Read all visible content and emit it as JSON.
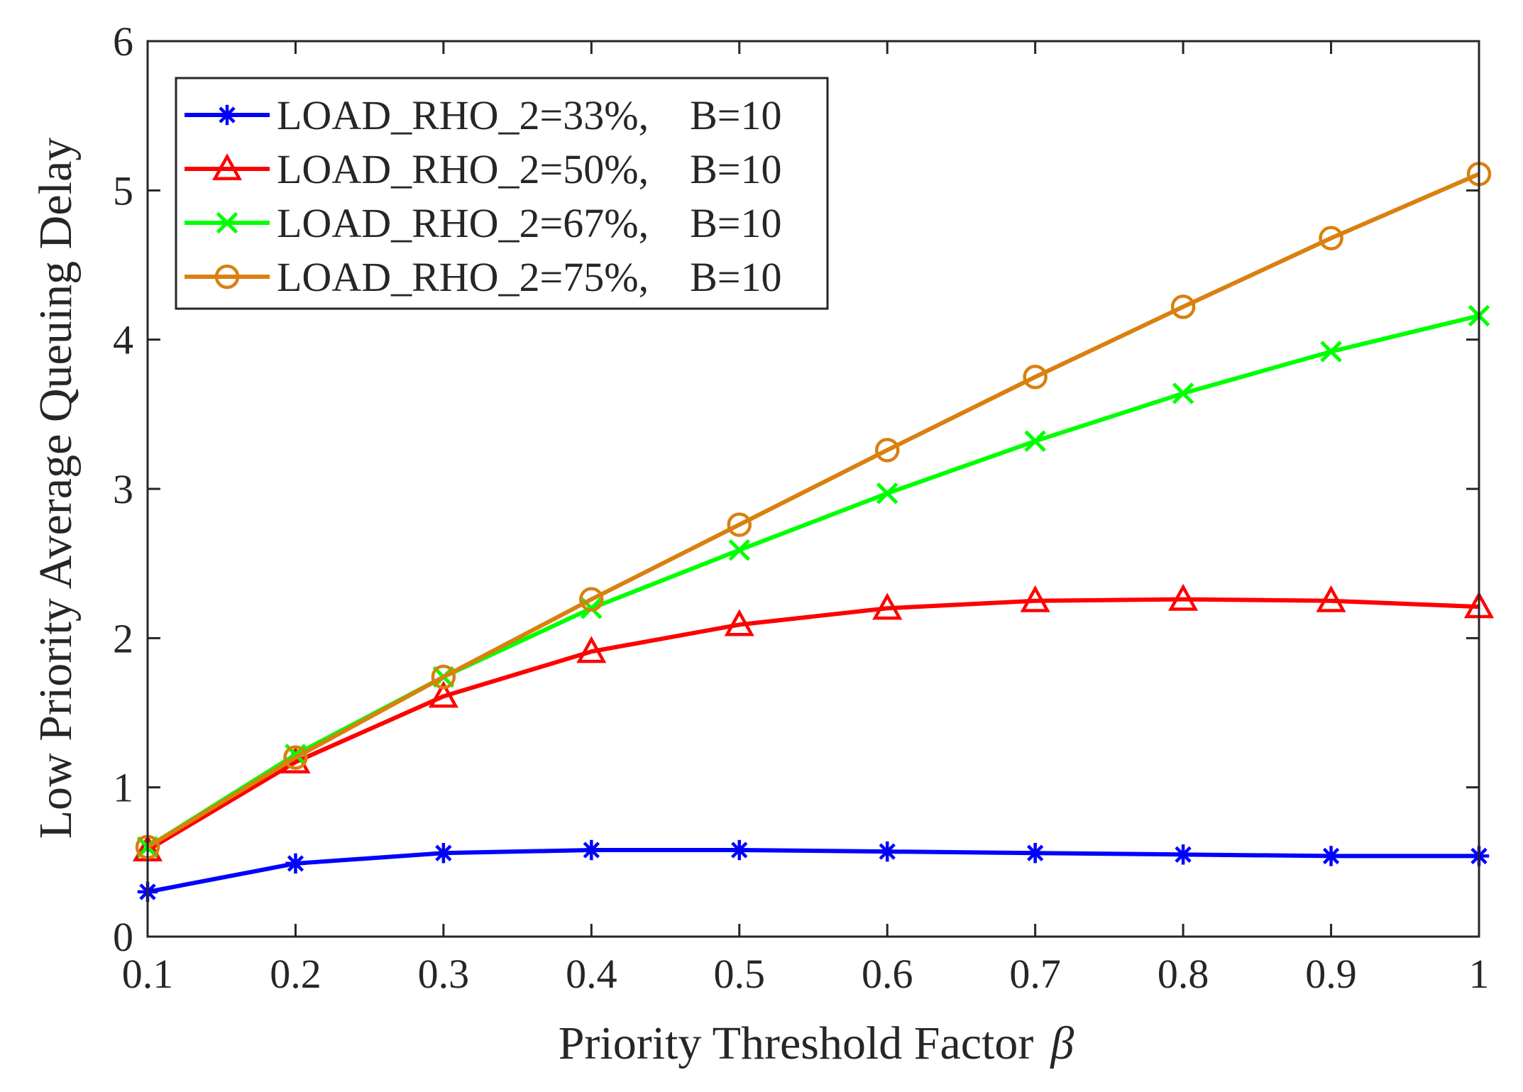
{
  "chart_data": {
    "type": "line",
    "title": "",
    "xlabel": "Priority Threshold Factor",
    "xlabel_symbol": "β",
    "ylabel": "Low Priority Average Queuing Delay",
    "xlim": [
      0.1,
      1
    ],
    "ylim": [
      0,
      6
    ],
    "x": [
      0.1,
      0.2,
      0.3,
      0.4,
      0.5,
      0.6,
      0.7,
      0.8,
      0.9,
      1
    ],
    "xticks": [
      0.1,
      0.2,
      0.3,
      0.4,
      0.5,
      0.6,
      0.7,
      0.8,
      0.9,
      1
    ],
    "xtick_labels": [
      "0.1",
      "0.2",
      "0.3",
      "0.4",
      "0.5",
      "0.6",
      "0.7",
      "0.8",
      "0.9",
      "1"
    ],
    "yticks": [
      0,
      1,
      2,
      3,
      4,
      5,
      6
    ],
    "ytick_labels": [
      "0",
      "1",
      "2",
      "3",
      "4",
      "5",
      "6"
    ],
    "grid": false,
    "legend_position": "top-left",
    "series": [
      {
        "name": "LOAD_RHO_2=33%,    B=10",
        "color": "#0000ff",
        "marker": "asterisk",
        "values": [
          0.3,
          0.49,
          0.56,
          0.58,
          0.58,
          0.57,
          0.56,
          0.55,
          0.54,
          0.54
        ]
      },
      {
        "name": "LOAD_RHO_2=50%,    B=10",
        "color": "#ff0000",
        "marker": "triangle",
        "values": [
          0.58,
          1.17,
          1.61,
          1.91,
          2.09,
          2.2,
          2.25,
          2.26,
          2.25,
          2.21
        ]
      },
      {
        "name": "LOAD_RHO_2=67%,    B=10",
        "color": "#00ff00",
        "marker": "x",
        "values": [
          0.6,
          1.22,
          1.74,
          2.2,
          2.59,
          2.97,
          3.32,
          3.64,
          3.92,
          4.16
        ]
      },
      {
        "name": "LOAD_RHO_2=75%,    B=10",
        "color": "#d9800f",
        "marker": "circle",
        "values": [
          0.6,
          1.2,
          1.74,
          2.26,
          2.76,
          3.26,
          3.75,
          4.22,
          4.68,
          5.11
        ]
      }
    ]
  }
}
